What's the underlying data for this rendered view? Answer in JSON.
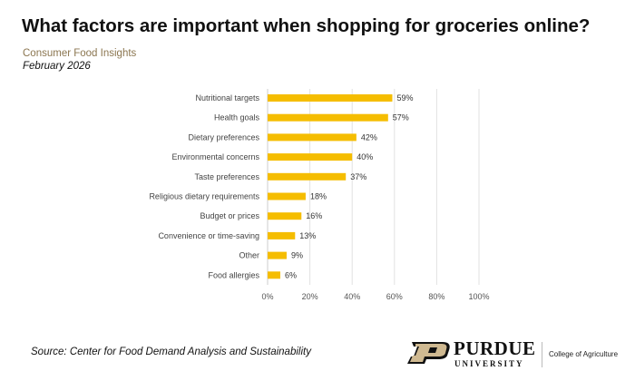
{
  "header": {
    "title": "What factors are important when shopping for groceries online?",
    "subtitle": "Consumer Food Insights",
    "date": "February 2026"
  },
  "footer": {
    "source": "Source:  Center for Food Demand Analysis and Sustainability",
    "logo_main": "PURDUE",
    "logo_sub": "UNIVERSITY",
    "college": "College of Agriculture"
  },
  "chart_data": {
    "type": "bar",
    "orientation": "horizontal",
    "categories": [
      "Nutritional targets",
      "Health goals",
      "Dietary preferences",
      "Environmental concerns",
      "Taste preferences",
      "Religious dietary requirements",
      "Budget or prices",
      "Convenience or time-saving",
      "Other",
      "Food allergies"
    ],
    "values": [
      59,
      57,
      42,
      40,
      37,
      18,
      16,
      13,
      9,
      6
    ],
    "data_labels": [
      "59%",
      "57%",
      "42%",
      "40%",
      "37%",
      "18%",
      "16%",
      "13%",
      "9%",
      "6%"
    ],
    "xlim": [
      0,
      100
    ],
    "xticks": [
      "0%",
      "20%",
      "40%",
      "60%",
      "80%",
      "100%"
    ],
    "grid": true,
    "color": "#f5bd00"
  }
}
